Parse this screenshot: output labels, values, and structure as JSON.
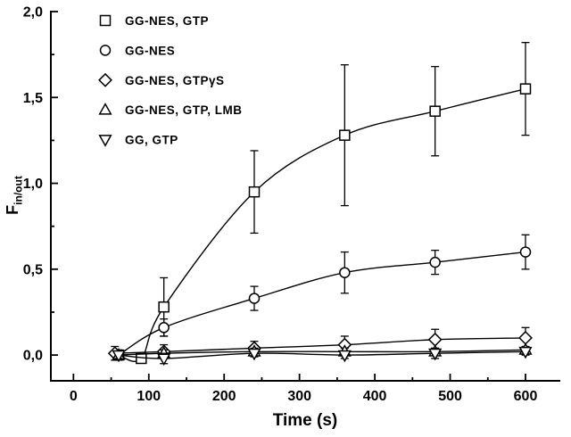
{
  "colors": {
    "foreground": "#000000",
    "background": "#ffffff"
  },
  "chart_data": {
    "type": "scatter",
    "title": "",
    "xlabel": "Time (s)",
    "ylabel_main": "F",
    "ylabel_sub": "in/out",
    "xlim": [
      -30,
      645
    ],
    "ylim": [
      -0.15,
      2.0
    ],
    "xticks": [
      0,
      100,
      200,
      300,
      400,
      500,
      600
    ],
    "xtick_labels": [
      "0",
      "100",
      "200",
      "300",
      "400",
      "500",
      "600"
    ],
    "yticks": [
      0.0,
      0.5,
      1.0,
      1.5,
      2.0
    ],
    "ytick_labels": [
      "0,0",
      "0,5",
      "1,0",
      "1,5",
      "2,0"
    ],
    "x_minor_step": 50,
    "y_minor_step": 0.25,
    "grid": false,
    "legend_position": "top-left",
    "series": [
      {
        "name": "GG-NES, GTP",
        "marker": "square",
        "x": [
          60,
          90,
          120,
          240,
          360,
          480,
          600
        ],
        "y": [
          0.0,
          -0.02,
          0.28,
          0.95,
          1.28,
          1.42,
          1.55
        ],
        "yerr": [
          0.03,
          0.02,
          0.17,
          0.24,
          0.41,
          0.26,
          0.27
        ]
      },
      {
        "name": "GG-NES",
        "marker": "circle",
        "x": [
          60,
          120,
          240,
          360,
          480,
          600
        ],
        "y": [
          0.0,
          0.16,
          0.33,
          0.48,
          0.54,
          0.6
        ],
        "yerr": [
          0.02,
          0.05,
          0.07,
          0.12,
          0.07,
          0.1
        ]
      },
      {
        "name": "GG-NES, GTPγS",
        "marker": "diamond",
        "x": [
          55,
          120,
          240,
          360,
          480,
          600
        ],
        "y": [
          0.01,
          0.02,
          0.04,
          0.06,
          0.09,
          0.1
        ],
        "yerr": [
          0.04,
          0.04,
          0.04,
          0.05,
          0.06,
          0.06
        ]
      },
      {
        "name": "GG-NES, GTP, LMB",
        "marker": "triangle-up",
        "x": [
          60,
          120,
          240,
          360,
          480,
          600
        ],
        "y": [
          0.0,
          0.01,
          0.02,
          0.02,
          0.02,
          0.03
        ],
        "yerr": [
          0.02,
          0.02,
          0.02,
          0.02,
          0.02,
          0.02
        ]
      },
      {
        "name": "GG, GTP",
        "marker": "triangle-down",
        "x": [
          60,
          120,
          240,
          360,
          480,
          600
        ],
        "y": [
          0.0,
          -0.02,
          0.01,
          0.0,
          0.01,
          0.02
        ],
        "yerr": [
          0.02,
          0.03,
          0.02,
          0.02,
          0.03,
          0.02
        ]
      }
    ]
  }
}
